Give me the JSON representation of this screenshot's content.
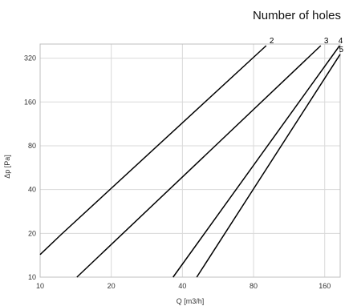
{
  "chart_data": {
    "type": "line",
    "title": "",
    "legend_title": "Number of holes",
    "xlabel": "Q [m3/h]",
    "ylabel": "Δp  [Pa]",
    "x_scale": "log2",
    "y_scale": "log2",
    "xlim": [
      10,
      186
    ],
    "ylim": [
      10,
      400
    ],
    "x_ticks": [
      10,
      20,
      40,
      80,
      160
    ],
    "y_ticks": [
      10,
      20,
      40,
      80,
      160,
      320
    ],
    "grid": true,
    "colors": {
      "line": "#000000",
      "grid": "#d9d9d9",
      "axis": "#bfbfbf"
    },
    "series": [
      {
        "name": "2",
        "points": [
          [
            10,
            14.3
          ],
          [
            12.3,
            19.7
          ],
          [
            90.5,
            390
          ]
        ]
      },
      {
        "name": "3",
        "points": [
          [
            14.3,
            10
          ],
          [
            154,
            390
          ]
        ]
      },
      {
        "name": "4",
        "points": [
          [
            36.5,
            10
          ],
          [
            185,
            390
          ]
        ]
      },
      {
        "name": "5",
        "points": [
          [
            46,
            10
          ],
          [
            186,
            340
          ]
        ]
      }
    ]
  }
}
